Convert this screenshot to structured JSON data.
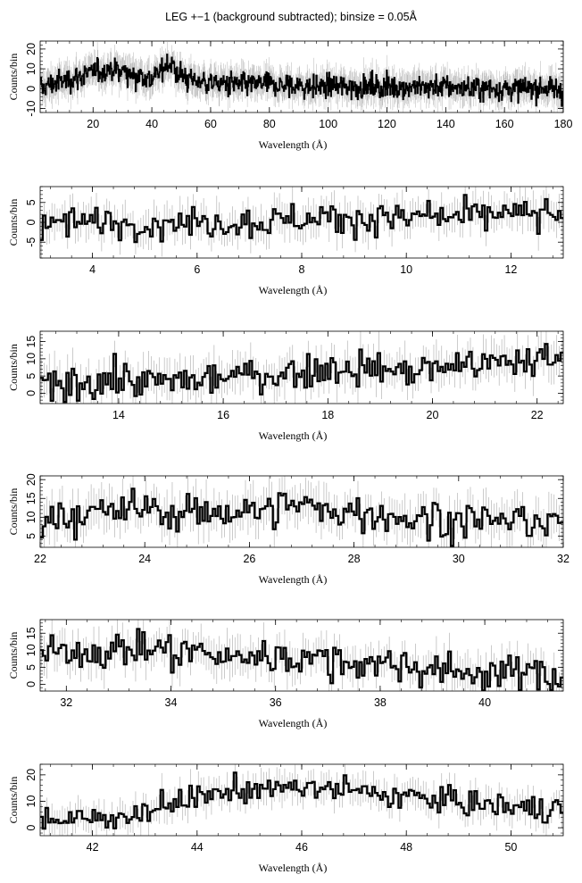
{
  "title": "LEG +−1 (background subtracted); binsize = 0.05Å",
  "chart_data": [
    {
      "type": "line",
      "xlabel": "Wavelength (Å)",
      "ylabel": "Counts/bin",
      "xlim": [
        2,
        180
      ],
      "ylim": [
        -12,
        24
      ],
      "xticks": [
        20,
        40,
        60,
        80,
        100,
        120,
        140,
        160,
        180
      ],
      "yticks": [
        -10,
        0,
        10,
        20
      ],
      "x": [
        2,
        5,
        10,
        15,
        20,
        25,
        30,
        35,
        40,
        43,
        45,
        48,
        52,
        56,
        60,
        70,
        80,
        90,
        100,
        110,
        120,
        130,
        140,
        150,
        160,
        170,
        175,
        178
      ],
      "values": [
        0,
        2,
        4,
        6,
        8,
        10,
        9,
        7,
        5,
        8,
        14,
        9,
        5,
        4,
        3,
        2,
        2,
        1,
        1,
        1,
        1,
        1,
        1,
        0,
        0,
        0,
        0,
        0
      ]
    },
    {
      "type": "line",
      "xlabel": "Wavelength (Å)",
      "ylabel": "Counts/bin",
      "xlim": [
        3,
        13
      ],
      "ylim": [
        -9,
        9
      ],
      "xticks": [
        4,
        6,
        8,
        10,
        12
      ],
      "yticks": [
        -5,
        0,
        5
      ],
      "x": [
        3,
        4,
        5,
        6,
        7,
        8,
        9,
        10,
        11,
        12,
        13
      ],
      "values": [
        -1,
        0,
        0,
        0,
        0,
        1,
        1,
        1,
        1,
        2,
        2
      ]
    },
    {
      "type": "line",
      "xlabel": "Wavelength (Å)",
      "ylabel": "Counts/bin",
      "xlim": [
        12.5,
        22.5
      ],
      "ylim": [
        -3,
        18
      ],
      "xticks": [
        14,
        16,
        18,
        20,
        22
      ],
      "yticks": [
        0,
        5,
        10,
        15
      ],
      "x": [
        12.5,
        13.5,
        14.5,
        15.5,
        16.5,
        17.5,
        18.5,
        19.5,
        20.5,
        21.5,
        22.5
      ],
      "values": [
        1,
        4,
        3,
        4,
        5,
        6,
        8,
        6,
        8,
        9,
        10
      ]
    },
    {
      "type": "line",
      "xlabel": "Wavelength (Å)",
      "ylabel": "Counts/bin",
      "xlim": [
        22,
        32
      ],
      "ylim": [
        2,
        21
      ],
      "xticks": [
        22,
        24,
        26,
        28,
        30,
        32
      ],
      "yticks": [
        5,
        10,
        15,
        20
      ],
      "x": [
        22,
        23,
        24,
        25,
        26,
        27,
        28,
        29,
        30,
        31,
        32
      ],
      "values": [
        10,
        11,
        12,
        11,
        12,
        13,
        11,
        10,
        9,
        9,
        9
      ]
    },
    {
      "type": "line",
      "xlabel": "Wavelength (Å)",
      "ylabel": "Counts/bin",
      "xlim": [
        31.5,
        41.5
      ],
      "ylim": [
        -2,
        19
      ],
      "xticks": [
        32,
        34,
        36,
        38,
        40
      ],
      "yticks": [
        0,
        5,
        10,
        15
      ],
      "x": [
        31.5,
        32.5,
        33.5,
        34.5,
        35.5,
        36.5,
        37.5,
        38.5,
        39.5,
        40.5,
        41.5
      ],
      "values": [
        9,
        10,
        10,
        9,
        8,
        8,
        6,
        5,
        4,
        3,
        3
      ]
    },
    {
      "type": "line",
      "xlabel": "Wavelength (Å)",
      "ylabel": "Counts/bin",
      "xlim": [
        41,
        51
      ],
      "ylim": [
        -3,
        24
      ],
      "xticks": [
        42,
        44,
        46,
        48,
        50
      ],
      "yticks": [
        0,
        10,
        20
      ],
      "x": [
        41,
        42,
        43,
        44,
        45,
        46,
        47,
        48,
        49,
        50,
        51
      ],
      "values": [
        3,
        3,
        6,
        12,
        15,
        15,
        14,
        12,
        10,
        8,
        7
      ]
    }
  ]
}
